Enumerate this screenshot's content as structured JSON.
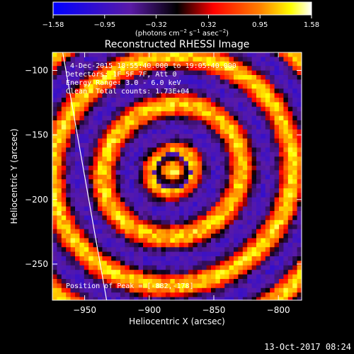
{
  "chart_data": {
    "type": "heatmap",
    "title": "Reconstructed RHESSI Image",
    "xlabel": "Heliocentric X (arcsec)",
    "ylabel": "Heliocentric Y (arcsec)",
    "xlim": [
      -975,
      -782
    ],
    "ylim": [
      -278,
      -86
    ],
    "x_ticks": [
      {
        "value": -950,
        "label": "−950"
      },
      {
        "value": -900,
        "label": "−900"
      },
      {
        "value": -850,
        "label": "−850"
      },
      {
        "value": -800,
        "label": "−800"
      }
    ],
    "y_ticks": [
      {
        "value": -100,
        "label": "−100"
      },
      {
        "value": -150,
        "label": "−150"
      },
      {
        "value": -200,
        "label": "−200"
      },
      {
        "value": -250,
        "label": "−250"
      }
    ],
    "annotations": [
      "4-Dec-2015 18:55:40.000 to 19:05:40.000",
      "Detectors: 1F 5F 7F, Att 0",
      "Energy Range: 3.0 - 6.0 keV",
      "Clean",
      "Total counts: 1.73E+04"
    ],
    "peak_label": "Position of Peak = [-882,-178]",
    "peak": {
      "x": -882,
      "y": -178
    },
    "colorbar": {
      "range": [
        -1.58,
        1.58
      ],
      "tick_labels": [
        "−1.58",
        "−0.95",
        "−0.32",
        "0.32",
        "0.95",
        "1.58"
      ],
      "unit_prefix": "(photons cm",
      "unit_exp1": "−2",
      "unit_mid": " s",
      "unit_exp2": "−1",
      "unit_mid2": " asec",
      "unit_exp3": "−2",
      "unit_suffix": ")",
      "colors": [
        "#0000ff",
        "#5a1aa6",
        "#000000",
        "#ff0000",
        "#ff8000",
        "#ffff00",
        "#ffffff"
      ]
    },
    "limb_line": {
      "points": [
        [
          -967,
          -86
        ],
        [
          -933,
          -278
        ]
      ]
    }
  },
  "footer": {
    "timestamp": "13-Oct-2017 08:24"
  }
}
